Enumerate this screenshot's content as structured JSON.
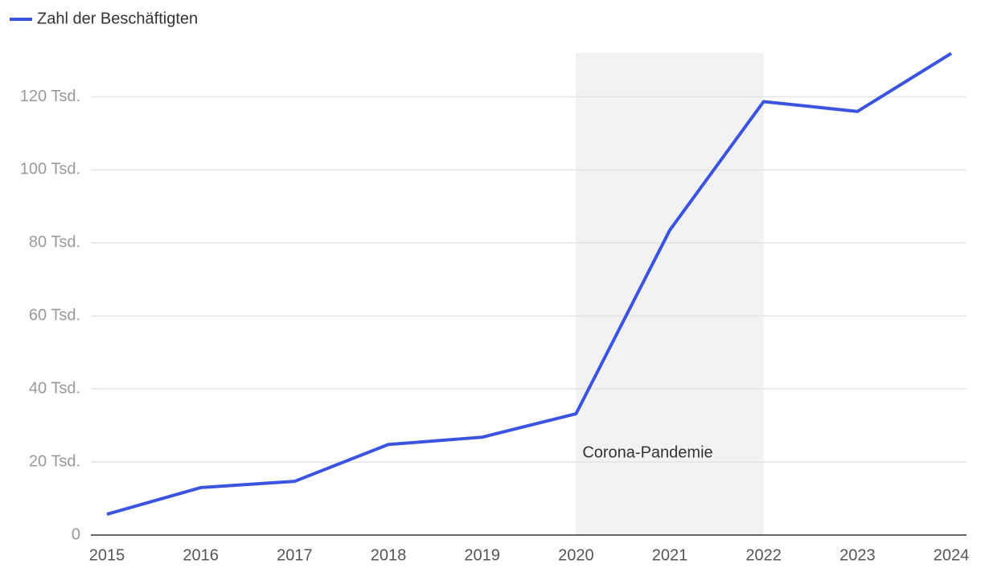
{
  "chart_data": {
    "type": "line",
    "x": [
      2015,
      2016,
      2017,
      2018,
      2019,
      2020,
      2021,
      2022,
      2023,
      2024
    ],
    "series": [
      {
        "name": "Zahl der Beschäftigten",
        "color": "#3b54e0",
        "values": [
          5.7,
          13.0,
          14.7,
          24.8,
          26.8,
          33.2,
          83.5,
          118.7,
          116.0,
          131.9
        ]
      }
    ],
    "xlim": [
      2015,
      2024
    ],
    "xticks": [
      2015,
      2016,
      2017,
      2018,
      2019,
      2020,
      2021,
      2022,
      2023,
      2024
    ],
    "ylim": [
      0,
      132
    ],
    "yticks": [
      0,
      {
        "value": 20,
        "label": "20 Tsd."
      },
      {
        "value": 40,
        "label": "40 Tsd."
      },
      {
        "value": 60,
        "label": "60 Tsd."
      },
      {
        "value": 80,
        "label": "80 Tsd."
      },
      {
        "value": 100,
        "label": "100 Tsd."
      },
      {
        "value": 120,
        "label": "120 Tsd."
      }
    ],
    "grid": true,
    "annotations": [
      {
        "label": "Corona-Pandemie",
        "x": [
          2020,
          2022
        ]
      }
    ]
  }
}
